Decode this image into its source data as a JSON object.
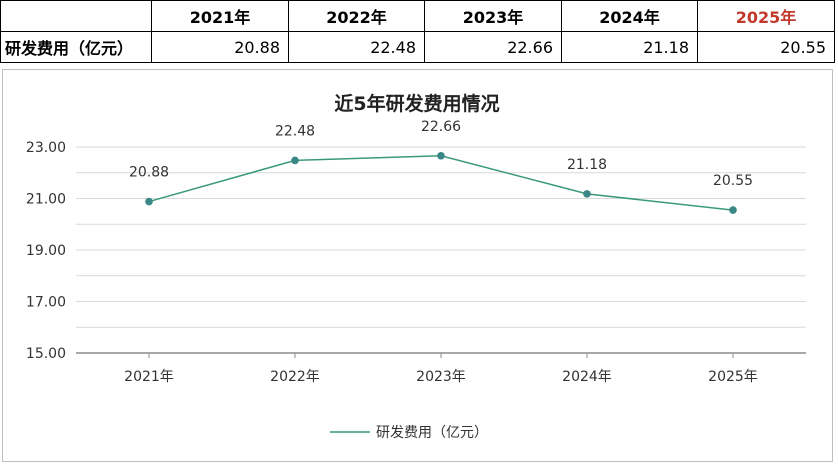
{
  "table": {
    "headers": [
      "",
      "2021年",
      "2022年",
      "2023年",
      "2024年",
      "2025年"
    ],
    "row_label": "研发费用（亿元）",
    "values": [
      "20.88",
      "22.48",
      "22.66",
      "21.18",
      "20.55"
    ],
    "highlight_color": "#c0392b"
  },
  "chart_data": {
    "type": "line",
    "title": "近5年研发费用情况",
    "categories": [
      "2021年",
      "2022年",
      "2023年",
      "2024年",
      "2025年"
    ],
    "series": [
      {
        "name": "研发费用（亿元）",
        "values": [
          20.88,
          22.48,
          22.66,
          21.18,
          20.55
        ],
        "color": "#3a9a77"
      }
    ],
    "data_labels": [
      "20.88",
      "22.48",
      "22.66",
      "21.18",
      "20.55"
    ],
    "ylim": [
      15,
      23
    ],
    "yticks": [
      "15.00",
      "17.00",
      "19.00",
      "21.00",
      "23.00"
    ],
    "grid": true,
    "legend_position": "bottom",
    "marker_color": "#3b8686"
  }
}
